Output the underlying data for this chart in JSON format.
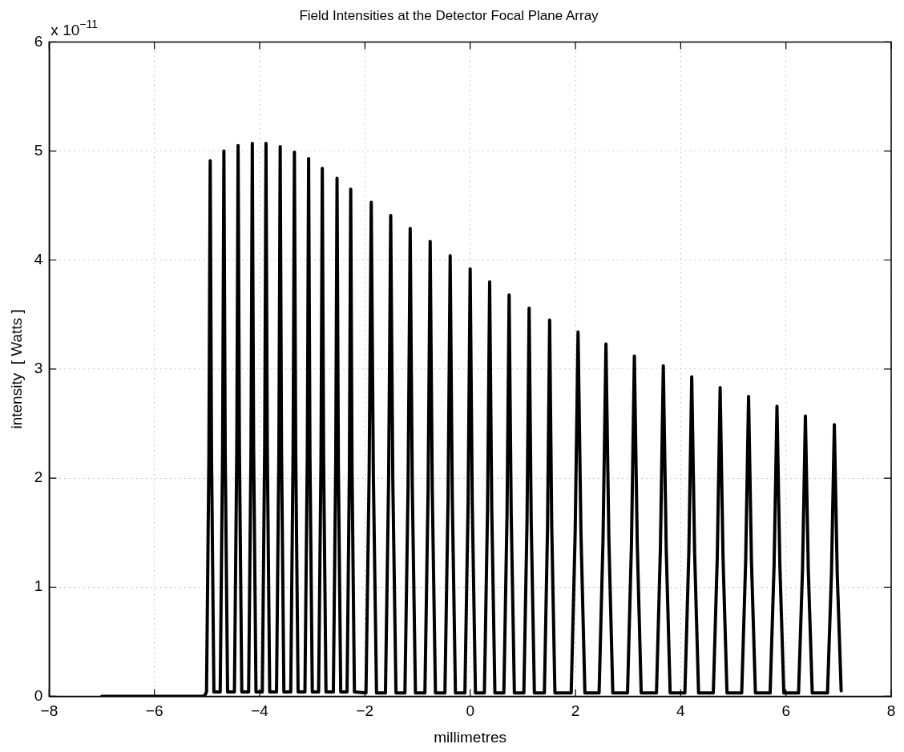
{
  "chart_data": {
    "type": "line",
    "title": "Field Intensities at the Detector Focal Plane Array",
    "xlabel": "millimetres",
    "ylabel": "intensity  [ Watts ]",
    "annotations": [
      "x 10$^{−11}$"
    ],
    "xlim": [
      -8,
      8
    ],
    "xticks": [
      -8,
      -6,
      -4,
      -2,
      0,
      2,
      4,
      6,
      8
    ],
    "ylim": [
      0,
      6
    ],
    "yticks": [
      0,
      1,
      2,
      3,
      4,
      5,
      6
    ],
    "grid": true,
    "legend": false,
    "marker": "none",
    "line_style": "solid",
    "series": [
      {
        "color": "#000000",
        "x": [
          -7.0,
          -5.05,
          -5.01,
          -4.965,
          -4.94,
          -4.915,
          -4.87,
          -4.75,
          -4.705,
          -4.68,
          -4.655,
          -4.61,
          -4.48,
          -4.435,
          -4.41,
          -4.385,
          -4.34,
          -4.21,
          -4.165,
          -4.14,
          -4.115,
          -4.07,
          -3.95,
          -3.905,
          -3.88,
          -3.855,
          -3.81,
          -3.68,
          -3.635,
          -3.61,
          -3.585,
          -3.54,
          -3.41,
          -3.365,
          -3.34,
          -3.315,
          -3.27,
          -3.14,
          -3.095,
          -3.07,
          -3.045,
          -3.0,
          -2.88,
          -2.835,
          -2.81,
          -2.785,
          -2.74,
          -2.6,
          -2.555,
          -2.53,
          -2.505,
          -2.46,
          -2.34,
          -2.295,
          -2.27,
          -2.245,
          -2.2,
          -1.98,
          -1.92,
          -1.88,
          -1.84,
          -1.78,
          -1.61,
          -1.55,
          -1.51,
          -1.47,
          -1.41,
          -1.24,
          -1.18,
          -1.14,
          -1.1,
          -1.04,
          -0.86,
          -0.8,
          -0.76,
          -0.72,
          -0.66,
          -0.48,
          -0.42,
          -0.38,
          -0.34,
          -0.28,
          -0.1,
          -0.04,
          0.0,
          0.04,
          0.1,
          0.27,
          0.33,
          0.37,
          0.41,
          0.47,
          0.64,
          0.7,
          0.74,
          0.78,
          0.84,
          1.02,
          1.08,
          1.12,
          1.16,
          1.22,
          1.41,
          1.47,
          1.51,
          1.55,
          1.61,
          1.92,
          1.995,
          2.05,
          2.105,
          2.18,
          2.45,
          2.525,
          2.58,
          2.635,
          2.71,
          2.99,
          3.065,
          3.12,
          3.175,
          3.25,
          3.54,
          3.615,
          3.67,
          3.725,
          3.8,
          4.08,
          4.155,
          4.21,
          4.265,
          4.34,
          4.62,
          4.695,
          4.75,
          4.805,
          4.88,
          5.16,
          5.235,
          5.29,
          5.345,
          5.42,
          5.7,
          5.775,
          5.83,
          5.885,
          5.96,
          6.24,
          6.315,
          6.37,
          6.425,
          6.5,
          6.79,
          6.865,
          6.92,
          6.975,
          7.05
        ],
        "values": [
          0,
          0,
          0.04,
          2.21,
          4.91,
          2.21,
          0.04,
          0.04,
          2.25,
          5.0,
          2.25,
          0.04,
          0.04,
          2.27,
          5.05,
          2.27,
          0.04,
          0.04,
          2.28,
          5.07,
          2.28,
          0.04,
          0.04,
          2.28,
          5.07,
          2.28,
          0.04,
          0.04,
          2.27,
          5.04,
          2.27,
          0.04,
          0.04,
          2.25,
          4.99,
          2.25,
          0.04,
          0.04,
          2.22,
          4.93,
          2.22,
          0.04,
          0.04,
          2.18,
          4.84,
          2.18,
          0.04,
          0.04,
          2.14,
          4.75,
          2.14,
          0.04,
          0.04,
          2.09,
          4.65,
          2.09,
          0.04,
          0.03,
          2.04,
          4.53,
          2.04,
          0.03,
          0.03,
          1.98,
          4.41,
          1.98,
          0.03,
          0.03,
          1.93,
          4.29,
          1.93,
          0.03,
          0.03,
          1.88,
          4.17,
          1.88,
          0.03,
          0.03,
          1.82,
          4.04,
          1.82,
          0.03,
          0.03,
          1.76,
          3.92,
          1.76,
          0.03,
          0.03,
          1.71,
          3.8,
          1.71,
          0.03,
          0.03,
          1.66,
          3.68,
          1.66,
          0.03,
          0.03,
          1.6,
          3.56,
          1.6,
          0.03,
          0.03,
          1.55,
          3.45,
          1.55,
          0.03,
          0.03,
          1.5,
          3.34,
          1.5,
          0.03,
          0.03,
          1.45,
          3.23,
          1.45,
          0.03,
          0.03,
          1.4,
          3.12,
          1.4,
          0.03,
          0.03,
          1.36,
          3.03,
          1.36,
          0.03,
          0.03,
          1.32,
          2.93,
          1.32,
          0.03,
          0.03,
          1.27,
          2.83,
          1.27,
          0.03,
          0.03,
          1.24,
          2.75,
          1.24,
          0.03,
          0.03,
          1.2,
          2.66,
          1.2,
          0.03,
          0.03,
          1.16,
          2.57,
          1.16,
          0.03,
          0.03,
          1.12,
          2.49,
          1.12,
          0.05
        ]
      }
    ]
  }
}
